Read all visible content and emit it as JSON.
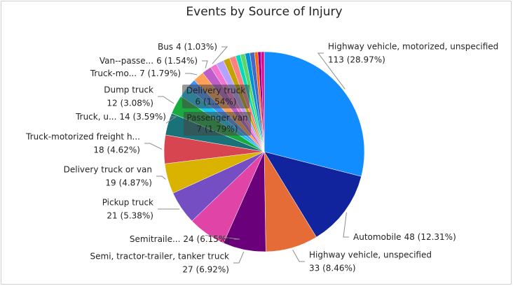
{
  "chart_data": {
    "type": "pie",
    "title": "Events by Source of Injury",
    "categories": [
      "Highway vehicle, motorized, unspecified",
      "Automobile",
      "Highway vehicle, unspecified",
      "Semi, tractor-trailer, tanker truck",
      "Semitraile...",
      "Pickup truck",
      "Delivery truck or van",
      "Truck-motorized freight h...",
      "Truck, u...",
      "Dump truck",
      "Passenger van",
      "Delivery truck",
      "Truck-mo...",
      "Van--passe...",
      "Bus",
      null,
      null,
      null,
      null,
      null,
      null,
      null,
      null,
      null,
      null
    ],
    "values": [
      113,
      48,
      33,
      27,
      24,
      21,
      19,
      18,
      14,
      12,
      7,
      6,
      7,
      6,
      4,
      5,
      4,
      4,
      3,
      3,
      3,
      3,
      2,
      2,
      2
    ],
    "value_labels": [
      "113 (28.97%)",
      "48 (12.31%)",
      "33 (8.46%)",
      "27 (6.92%)",
      "24 (6.15%)",
      "21 (5.38%)",
      "19 (4.87%)",
      "18 (4.62%)",
      "14 (3.59%)",
      "12 (3.08%)",
      "7 (1.79%)",
      "6 (1.54%)",
      "7 (1.79%)",
      "6 (1.54%)",
      "4 (1.03%)",
      null,
      null,
      null,
      null,
      null,
      null,
      null,
      null,
      null,
      null
    ],
    "colors": [
      "#118DFF",
      "#12239E",
      "#E66C37",
      "#6B007B",
      "#E044A7",
      "#744EC2",
      "#D9B300",
      "#D64550",
      "#197278",
      "#1AAB40",
      "#15C6F4",
      "#4092FF",
      "#FFA058",
      "#BE5DC9",
      "#F472D0",
      "#B5A1FF",
      "#C4A200",
      "#FF8080",
      "#00DBBC",
      "#5BD667",
      "#0091D5",
      "#4668C5",
      "#FF6300",
      "#99008A",
      "#EC008C"
    ]
  }
}
